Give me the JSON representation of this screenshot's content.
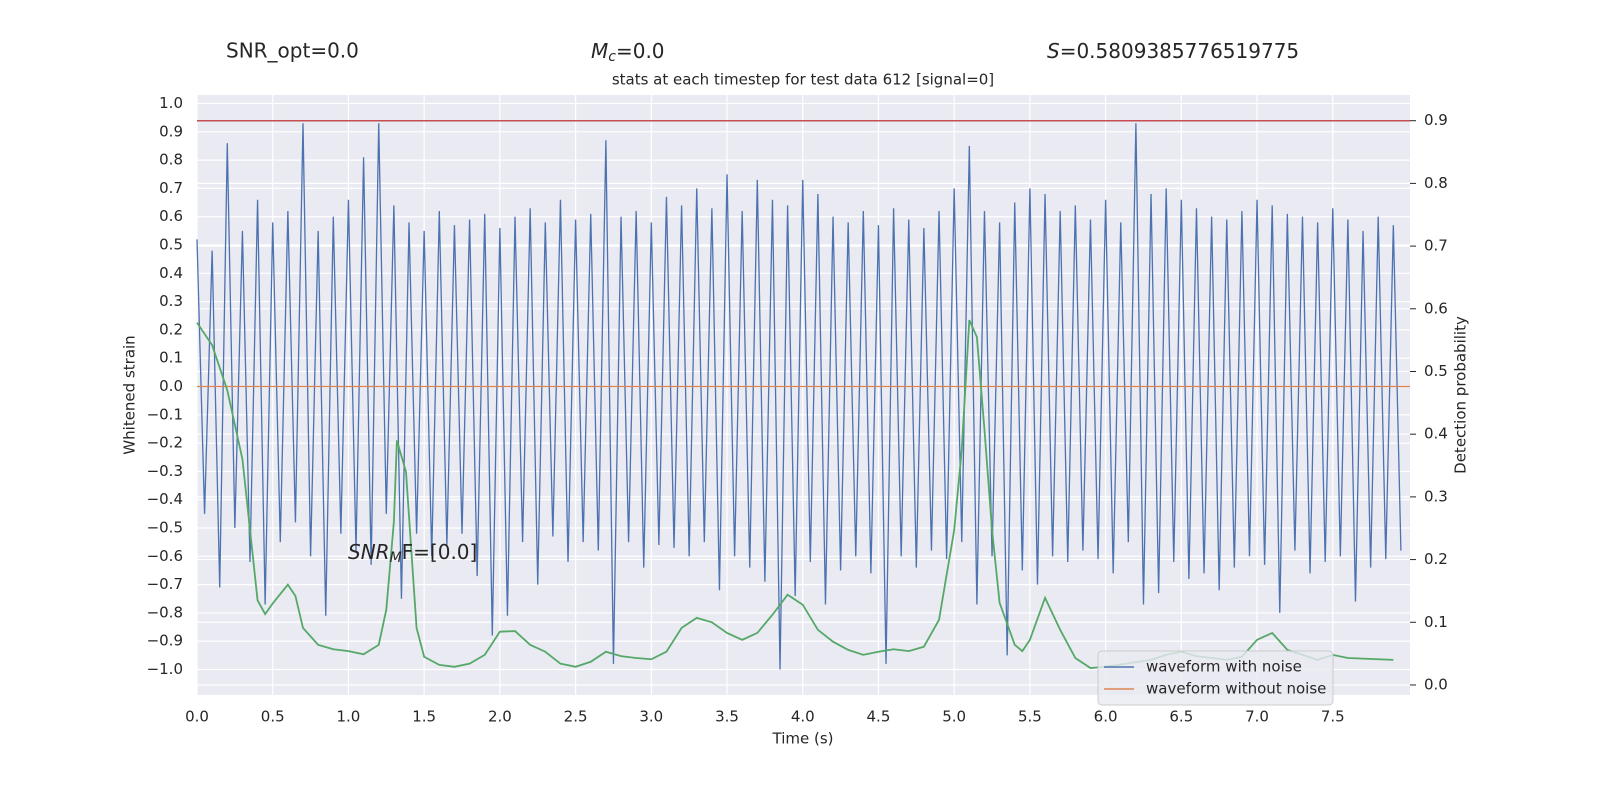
{
  "chart_data": {
    "type": "line",
    "title": "stats at each timestep for test data 612 [signal=0]",
    "annotations": [
      {
        "text": "SNR_opt=0.0"
      },
      {
        "symbol": "M",
        "sub": "c",
        "text": "=0.0"
      },
      {
        "symbol": "S",
        "text": "=0.5809385776519775"
      },
      {
        "symbol": "SNR",
        "sub": "M",
        "text": "F=[0.0]"
      }
    ],
    "x_label": "Time (s)",
    "y_label": "Whitened strain",
    "y2_label": "Detection probability",
    "xlim": [
      0,
      8.01
    ],
    "ylim": [
      -1.09,
      1.03
    ],
    "y2lim": [
      -0.016,
      0.941
    ],
    "xticks": [
      {
        "value": 0,
        "label": "0.0"
      },
      {
        "value": 0.5,
        "label": "0.5"
      },
      {
        "value": 1,
        "label": "1.0"
      },
      {
        "value": 1.5,
        "label": "1.5"
      },
      {
        "value": 2,
        "label": "2.0"
      },
      {
        "value": 2.5,
        "label": "2.5"
      },
      {
        "value": 3,
        "label": "3.0"
      },
      {
        "value": 3.5,
        "label": "3.5"
      },
      {
        "value": 4,
        "label": "4.0"
      },
      {
        "value": 4.5,
        "label": "4.5"
      },
      {
        "value": 5,
        "label": "5.0"
      },
      {
        "value": 5.5,
        "label": "5.5"
      },
      {
        "value": 6,
        "label": "6.0"
      },
      {
        "value": 6.5,
        "label": "6.5"
      },
      {
        "value": 7,
        "label": "7.0"
      },
      {
        "value": 7.5,
        "label": "7.5"
      }
    ],
    "yticks": [
      {
        "value": -1,
        "label": "−1.0"
      },
      {
        "value": -0.9,
        "label": "−0.9"
      },
      {
        "value": -0.8,
        "label": "−0.8"
      },
      {
        "value": -0.7,
        "label": "−0.7"
      },
      {
        "value": -0.6,
        "label": "−0.6"
      },
      {
        "value": -0.5,
        "label": "−0.5"
      },
      {
        "value": -0.4,
        "label": "−0.4"
      },
      {
        "value": -0.3,
        "label": "−0.3"
      },
      {
        "value": -0.2,
        "label": "−0.2"
      },
      {
        "value": -0.1,
        "label": "−0.1"
      },
      {
        "value": 0,
        "label": "0.0"
      },
      {
        "value": 0.1,
        "label": "0.1"
      },
      {
        "value": 0.2,
        "label": "0.2"
      },
      {
        "value": 0.3,
        "label": "0.3"
      },
      {
        "value": 0.4,
        "label": "0.4"
      },
      {
        "value": 0.5,
        "label": "0.5"
      },
      {
        "value": 0.6,
        "label": "0.6"
      },
      {
        "value": 0.7,
        "label": "0.7"
      },
      {
        "value": 0.8,
        "label": "0.8"
      },
      {
        "value": 0.9,
        "label": "0.9"
      },
      {
        "value": 1,
        "label": "1.0"
      }
    ],
    "y2ticks": [
      {
        "value": 0,
        "label": "0.0"
      },
      {
        "value": 0.1,
        "label": "0.1"
      },
      {
        "value": 0.2,
        "label": "0.2"
      },
      {
        "value": 0.3,
        "label": "0.3"
      },
      {
        "value": 0.4,
        "label": "0.4"
      },
      {
        "value": 0.5,
        "label": "0.5"
      },
      {
        "value": 0.6,
        "label": "0.6"
      },
      {
        "value": 0.7,
        "label": "0.7"
      },
      {
        "value": 0.8,
        "label": "0.8"
      },
      {
        "value": 0.9,
        "label": "0.9"
      }
    ],
    "grid": true,
    "legend": "lower right",
    "series": [
      {
        "name": "waveform with noise",
        "color": "#4c72b0",
        "axis": "y",
        "x": [
          0,
          0.05,
          0.1,
          0.15,
          0.2,
          0.25,
          0.3,
          0.35,
          0.4,
          0.45,
          0.5,
          0.55,
          0.6,
          0.65,
          0.7,
          0.75,
          0.8,
          0.85,
          0.9,
          0.95,
          1,
          1.05,
          1.1,
          1.15,
          1.2,
          1.25,
          1.3,
          1.35,
          1.4,
          1.45,
          1.5,
          1.55,
          1.6,
          1.65,
          1.7,
          1.75,
          1.8,
          1.85,
          1.9,
          1.95,
          2,
          2.05,
          2.1,
          2.15,
          2.2,
          2.25,
          2.3,
          2.35,
          2.4,
          2.45,
          2.5,
          2.55,
          2.6,
          2.65,
          2.7,
          2.75,
          2.8,
          2.85,
          2.9,
          2.95,
          3,
          3.05,
          3.1,
          3.15,
          3.2,
          3.25,
          3.3,
          3.35,
          3.4,
          3.45,
          3.5,
          3.55,
          3.6,
          3.65,
          3.7,
          3.75,
          3.8,
          3.85,
          3.9,
          3.95,
          4,
          4.05,
          4.1,
          4.15,
          4.2,
          4.25,
          4.3,
          4.35,
          4.4,
          4.45,
          4.5,
          4.55,
          4.6,
          4.65,
          4.7,
          4.75,
          4.8,
          4.85,
          4.9,
          4.95,
          5,
          5.05,
          5.1,
          5.15,
          5.2,
          5.25,
          5.3,
          5.35,
          5.4,
          5.45,
          5.5,
          5.55,
          5.6,
          5.65,
          5.7,
          5.75,
          5.8,
          5.85,
          5.9,
          5.95,
          6,
          6.05,
          6.1,
          6.15,
          6.2,
          6.25,
          6.3,
          6.35,
          6.4,
          6.45,
          6.5,
          6.55,
          6.6,
          6.65,
          6.7,
          6.75,
          6.8,
          6.85,
          6.9,
          6.95,
          7,
          7.05,
          7.1,
          7.15,
          7.2,
          7.25,
          7.3,
          7.35,
          7.4,
          7.45,
          7.5,
          7.55,
          7.6,
          7.65,
          7.7,
          7.75,
          7.8,
          7.85,
          7.9,
          7.95
        ],
        "values": [
          0.52,
          -0.45,
          0.48,
          -0.71,
          0.86,
          -0.5,
          0.55,
          -0.62,
          0.66,
          -0.77,
          0.58,
          -0.55,
          0.62,
          -0.48,
          0.93,
          -0.6,
          0.55,
          -0.81,
          0.6,
          -0.52,
          0.66,
          -0.58,
          0.81,
          -0.63,
          0.93,
          -0.45,
          0.64,
          -0.75,
          0.58,
          -0.52,
          0.55,
          -0.6,
          0.62,
          -0.56,
          0.57,
          -0.52,
          0.59,
          -0.67,
          0.61,
          -0.88,
          0.56,
          -0.81,
          0.6,
          -0.55,
          0.63,
          -0.7,
          0.58,
          -0.53,
          0.66,
          -0.62,
          0.59,
          -0.55,
          0.61,
          -0.58,
          0.87,
          -0.98,
          0.6,
          -0.55,
          0.62,
          -0.64,
          0.58,
          -0.56,
          0.67,
          -0.57,
          0.64,
          -0.6,
          0.7,
          -0.55,
          0.63,
          -0.72,
          0.75,
          -0.6,
          0.62,
          -0.64,
          0.73,
          -0.69,
          0.66,
          -1.0,
          0.64,
          -0.74,
          0.73,
          -0.62,
          0.68,
          -0.77,
          0.6,
          -0.65,
          0.58,
          -0.6,
          0.62,
          -0.66,
          0.57,
          -0.98,
          0.63,
          -0.6,
          0.59,
          -0.64,
          0.56,
          -0.58,
          0.62,
          -0.61,
          0.7,
          -0.55,
          0.85,
          -0.77,
          0.62,
          -0.6,
          0.58,
          -0.95,
          0.65,
          -0.65,
          0.7,
          -0.7,
          0.68,
          -0.6,
          0.62,
          -0.62,
          0.64,
          -0.58,
          0.59,
          -0.61,
          0.66,
          -0.66,
          0.58,
          -0.55,
          0.93,
          -0.77,
          0.68,
          -0.73,
          0.7,
          -0.62,
          0.66,
          -0.68,
          0.63,
          -0.66,
          0.6,
          -0.72,
          0.59,
          -0.64,
          0.62,
          -0.6,
          0.66,
          -0.63,
          0.64,
          -0.8,
          0.61,
          -0.58,
          0.6,
          -0.66,
          0.58,
          -0.62,
          0.63,
          -0.6,
          0.59,
          -0.76,
          0.55,
          -0.64,
          0.6,
          -0.61,
          0.57,
          -0.58
        ]
      },
      {
        "name": "waveform without noise",
        "color": "#dd8452",
        "axis": "y",
        "x": [
          0,
          8.01
        ],
        "values": [
          0,
          0
        ]
      },
      {
        "color": "#55a868",
        "axis": "y2",
        "x": [
          0,
          0.1,
          0.2,
          0.3,
          0.4,
          0.45,
          0.5,
          0.6,
          0.65,
          0.7,
          0.8,
          0.9,
          1,
          1.1,
          1.2,
          1.25,
          1.3,
          1.32,
          1.38,
          1.45,
          1.5,
          1.6,
          1.7,
          1.8,
          1.9,
          2,
          2.1,
          2.2,
          2.3,
          2.4,
          2.5,
          2.6,
          2.7,
          2.8,
          2.9,
          3,
          3.1,
          3.2,
          3.3,
          3.4,
          3.5,
          3.6,
          3.7,
          3.8,
          3.9,
          4,
          4.1,
          4.2,
          4.3,
          4.4,
          4.5,
          4.6,
          4.7,
          4.8,
          4.9,
          5,
          5.05,
          5.1,
          5.15,
          5.2,
          5.25,
          5.3,
          5.4,
          5.45,
          5.5,
          5.6,
          5.7,
          5.8,
          5.9,
          6,
          6.3,
          6.4,
          6.5,
          6.6,
          6.8,
          6.9,
          7,
          7.1,
          7.2,
          7.4,
          7.5,
          7.6,
          7.9
        ],
        "values": [
          0.578,
          0.542,
          0.47,
          0.36,
          0.135,
          0.113,
          0.13,
          0.16,
          0.142,
          0.091,
          0.064,
          0.057,
          0.054,
          0.049,
          0.064,
          0.12,
          0.26,
          0.39,
          0.34,
          0.091,
          0.045,
          0.032,
          0.029,
          0.034,
          0.048,
          0.085,
          0.086,
          0.064,
          0.053,
          0.034,
          0.029,
          0.037,
          0.053,
          0.046,
          0.043,
          0.041,
          0.053,
          0.091,
          0.107,
          0.1,
          0.083,
          0.072,
          0.083,
          0.112,
          0.144,
          0.128,
          0.088,
          0.069,
          0.056,
          0.048,
          0.053,
          0.057,
          0.054,
          0.061,
          0.104,
          0.247,
          0.375,
          0.582,
          0.555,
          0.407,
          0.247,
          0.131,
          0.064,
          0.054,
          0.072,
          0.139,
          0.088,
          0.043,
          0.027,
          0.029,
          0.04,
          0.048,
          0.053,
          0.046,
          0.04,
          0.045,
          0.072,
          0.083,
          0.056,
          0.04,
          0.048,
          0.043,
          0.04
        ]
      }
    ],
    "hlines": [
      {
        "value": 0.9,
        "axis": "y2",
        "color": "#c44e52"
      }
    ]
  }
}
